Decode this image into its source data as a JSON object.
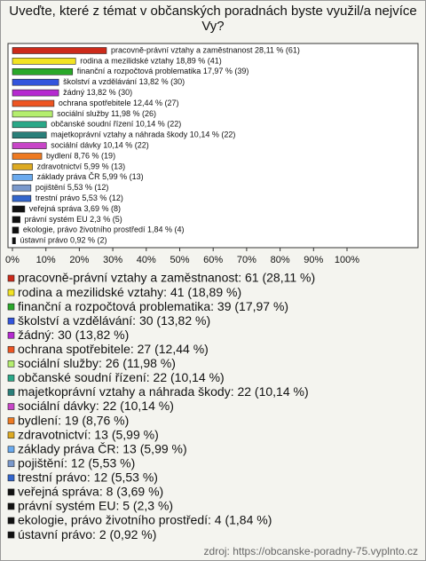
{
  "chart_data": {
    "type": "bar",
    "orientation": "horizontal",
    "title": "Uveďte, které z témat v občanských poradnách byste využil/a nejvíce Vy?",
    "categories": [
      "pracovně-právní vztahy a zaměstnanost",
      "rodina a mezilidské vztahy",
      "finanční a rozpočtová problematika",
      "školství a vzdělávání",
      "žádný",
      "ochrana spotřebitele",
      "sociální služby",
      "občanské soudní řízení",
      "majetkoprávní vztahy a náhrada škody",
      "sociální dávky",
      "bydlení",
      "zdravotnictví",
      "základy práva ČR",
      "pojištění",
      "trestní právo",
      "veřejná správa",
      "právní systém EU",
      "ekologie, právo životního prostředí",
      "ústavní právo"
    ],
    "values": [
      28.11,
      18.89,
      17.97,
      13.82,
      13.82,
      12.44,
      11.98,
      10.14,
      10.14,
      10.14,
      8.76,
      5.99,
      5.99,
      5.53,
      5.53,
      3.69,
      2.3,
      1.84,
      0.92
    ],
    "value_labels": [
      "pracovně-právní vztahy a zaměstnanost 28,11 % (61)",
      "rodina a mezilidské vztahy 18,89 % (41)",
      "finanční a rozpočtová problematika 17,97 % (39)",
      "školství a vzdělávání 13,82 % (30)",
      "žádný 13,82 % (30)",
      "ochrana spotřebitele 12,44 % (27)",
      "sociální služby 11,98 % (26)",
      "občanské soudní řízení 10,14 % (22)",
      "majetkoprávní vztahy a náhrada škody 10,14 % (22)",
      "sociální dávky 10,14 % (22)",
      "bydlení 8,76 % (19)",
      "zdravotnictví 5,99 % (13)",
      "základy práva ČR 5,99 % (13)",
      "pojištění 5,53 % (12)",
      "trestní právo 5,53 % (12)",
      "veřejná správa 3,69 % (8)",
      "právní systém EU 2,3 % (5)",
      "ekologie, právo životního prostředí 1,84 % (4)",
      "ústavní právo 0,92 % (2)"
    ],
    "legend_labels": [
      "pracovně-právní vztahy a zaměstnanost: 61 (28,11 %)",
      "rodina a mezilidské vztahy: 41 (18,89 %)",
      "finanční a rozpočtová problematika: 39 (17,97 %)",
      "školství a vzdělávání: 30 (13,82 %)",
      "žádný: 30 (13,82 %)",
      "ochrana spotřebitele: 27 (12,44 %)",
      "sociální služby: 26 (11,98 %)",
      "občanské soudní řízení: 22 (10,14 %)",
      "majetkoprávní vztahy a náhrada škody: 22 (10,14 %)",
      "sociální dávky: 22 (10,14 %)",
      "bydlení: 19 (8,76 %)",
      "zdravotnictví: 13 (5,99 %)",
      "základy práva ČR: 13 (5,99 %)",
      "pojištění: 12 (5,53 %)",
      "trestní právo: 12 (5,53 %)",
      "veřejná správa: 8 (3,69 %)",
      "právní systém EU: 5 (2,3 %)",
      "ekologie, právo životního prostředí: 4 (1,84 %)",
      "ústavní právo: 2 (0,92 %)"
    ],
    "colors": [
      "#cc2a1a",
      "#f2e322",
      "#2aa82a",
      "#3355dd",
      "#b52ad0",
      "#ee5522",
      "#b4ee6e",
      "#2aa888",
      "#2a7f7a",
      "#c846c8",
      "#ee7a22",
      "#ddaa22",
      "#6aaaee",
      "#7a99cc",
      "#3366cc",
      "#111111",
      "#111111",
      "#111111",
      "#111111"
    ],
    "xlim": [
      0,
      100
    ],
    "xticks": [
      {
        "value": 0,
        "label": "0%"
      },
      {
        "value": 10,
        "label": "10%"
      },
      {
        "value": 20,
        "label": "20%"
      },
      {
        "value": 30,
        "label": "30%"
      },
      {
        "value": 40,
        "label": "40%"
      },
      {
        "value": 50,
        "label": "50%"
      },
      {
        "value": 60,
        "label": "60%"
      },
      {
        "value": 70,
        "label": "70%"
      },
      {
        "value": 80,
        "label": "80%"
      },
      {
        "value": 90,
        "label": "90%"
      },
      {
        "value": 100,
        "label": "100%"
      }
    ],
    "source": "zdroj: https://obcanske-poradny-75.vyplnto.cz"
  }
}
